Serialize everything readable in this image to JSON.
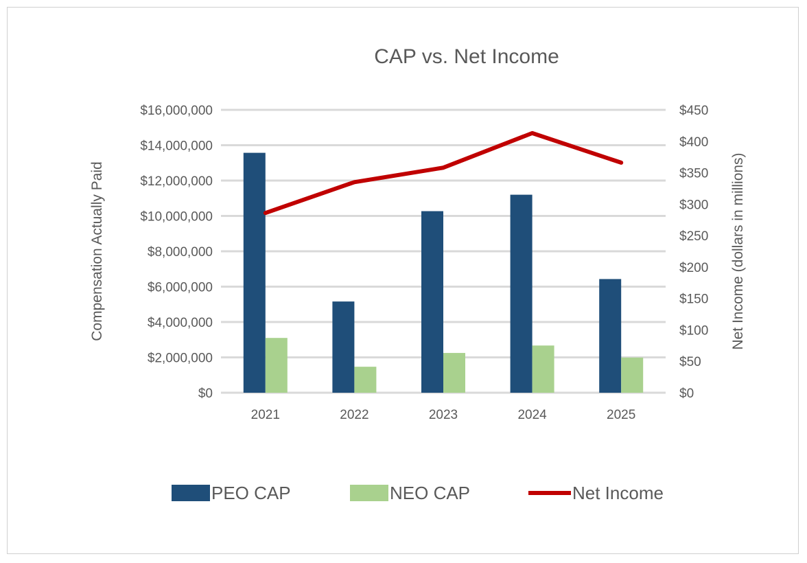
{
  "chart_data": {
    "type": "bar",
    "title": "CAP vs. Net Income",
    "categories": [
      "2021",
      "2022",
      "2023",
      "2024",
      "2025"
    ],
    "ylabel": "Compensation Actually Paid",
    "y2label": "Net Income (dollars in millions)",
    "ylim": [
      0,
      16000000
    ],
    "y2lim": [
      0,
      450
    ],
    "yticks": [
      "$0",
      "$2,000,000",
      "$4,000,000",
      "$6,000,000",
      "$8,000,000",
      "$10,000,000",
      "$12,000,000",
      "$14,000,000",
      "$16,000,000"
    ],
    "y2ticks": [
      "$0",
      "$50",
      "$100",
      "$150",
      "$200",
      "$250",
      "$300",
      "$350",
      "$400",
      "$450"
    ],
    "grid": true,
    "legend_position": "bottom",
    "series": [
      {
        "name": "PEO CAP",
        "type": "bar",
        "axis": "left",
        "color": "#1f4e79",
        "values": [
          13570000,
          5160000,
          10270000,
          11200000,
          6430000
        ]
      },
      {
        "name": "NEO CAP",
        "type": "bar",
        "axis": "left",
        "color": "#a9d18e",
        "values": [
          3100000,
          1470000,
          2250000,
          2670000,
          1990000
        ]
      },
      {
        "name": "Net Income",
        "type": "line",
        "axis": "right",
        "color": "#c00000",
        "values": [
          286,
          335,
          358,
          413,
          366
        ]
      }
    ]
  }
}
